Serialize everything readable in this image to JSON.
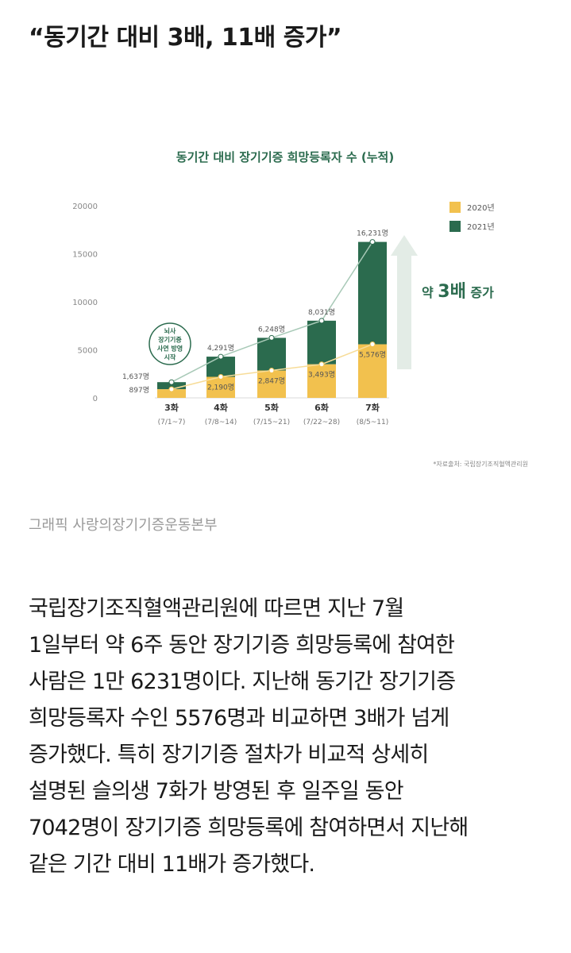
{
  "headline": "“동기간 대비 3배, 11배 증가”",
  "caption": "그래픽 사랑의장기기증운동본부",
  "paragraph_lines": [
    "국립장기조직혈액관리원에 따르면 지난 7월",
    "1일부터 약 6주 동안 장기기증 희망등록에 참여한",
    "사람은 1만 6231명이다. 지난해 동기간 장기기증",
    "희망등록자 수인 5576명과 비교하면 3배가 넘게",
    "증가했다. 특히 장기기증 절차가 비교적 상세히",
    "설명된 슬의생 7화가 방영된 후 일주일 동안",
    "7042명이 장기기증 희망등록에 참여하면서 지난해",
    "같은 기간 대비 11배가 증가했다."
  ],
  "chart_data": {
    "type": "bar",
    "title": "동기간 대비 장기기증 희망등록자 수 (누적)",
    "categories": [
      "3화",
      "4화",
      "5화",
      "6화",
      "7화"
    ],
    "category_sublabels": [
      "(7/1~7)",
      "(7/8~14)",
      "(7/15~21)",
      "(7/22~28)",
      "(8/5~11)"
    ],
    "series": [
      {
        "name": "2020년",
        "values": [
          897,
          2190,
          2847,
          3493,
          5576
        ],
        "labels": [
          "897명",
          "2,190명",
          "2,847명",
          "3,493명",
          "5,576명"
        ]
      },
      {
        "name": "2021년",
        "values": [
          1637,
          4291,
          6248,
          8031,
          16231
        ],
        "labels": [
          "1,637명",
          "4,291명",
          "6,248명",
          "8,031명",
          "16,231명"
        ]
      }
    ],
    "yticks": [
      "0",
      "5000",
      "10000",
      "15000",
      "20000"
    ],
    "ylim": [
      0,
      20000
    ],
    "legend_position": "top-right",
    "annotation_bubble": [
      "뇌사",
      "장기기증",
      "사연 방영",
      "시작"
    ],
    "annotation_growth": {
      "prefix": "약",
      "big": "3배",
      "suffix": "증가"
    },
    "source_note": "*자료출처: 국립장기조직혈액관리원",
    "colors": {
      "2020": "#f2c14e",
      "2021": "#2b6b4e",
      "line2020": "#f7dc98",
      "line2021": "#a8c9b7",
      "title": "#2b6b4e",
      "arrow": "#e3ece6"
    }
  }
}
